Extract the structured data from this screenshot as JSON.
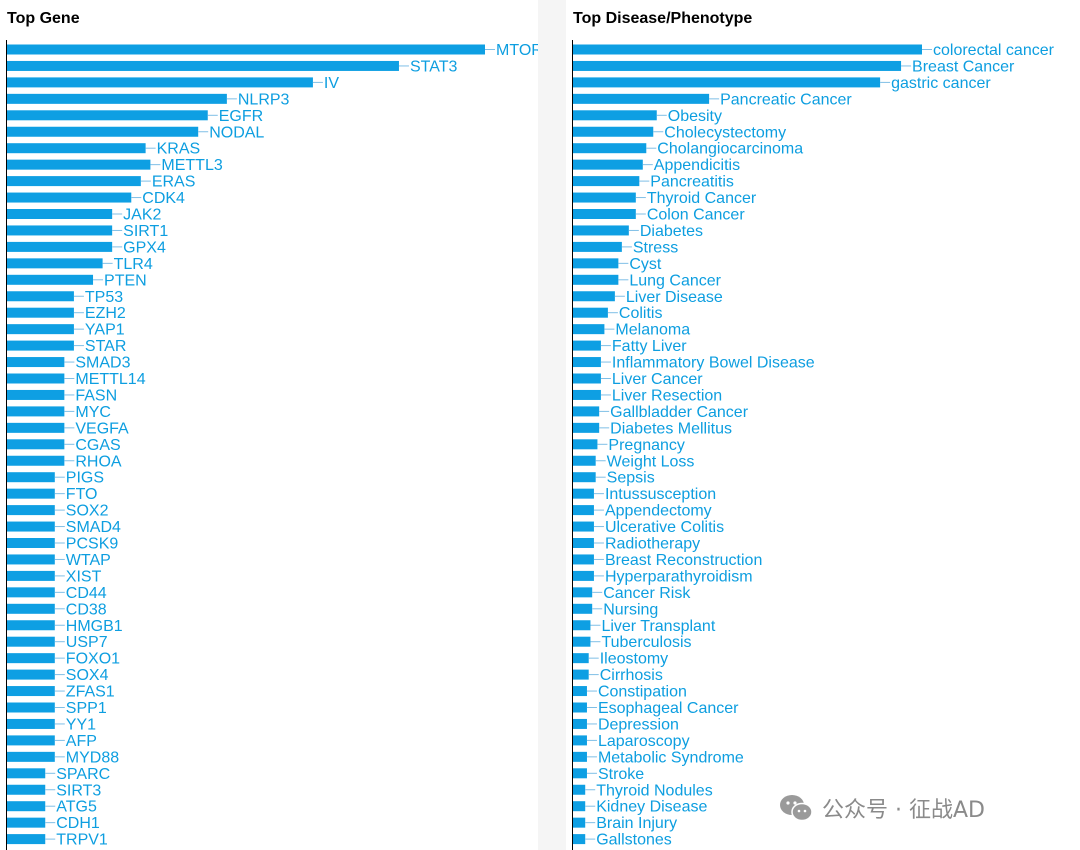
{
  "colors": {
    "bar": "#0e9fe3",
    "label": "#0d9ee0",
    "axis": "#000000",
    "watermark": "#8a8a8a"
  },
  "watermark": {
    "text": "公众号 · 征战AD",
    "icon": "wechat-icon"
  },
  "chart_data": [
    {
      "type": "bar",
      "orientation": "horizontal",
      "title": "Top Gene",
      "xlim": [
        0,
        100
      ],
      "categories": [
        "MTOR",
        "STAT3",
        "IV",
        "NLRP3",
        "EGFR",
        "NODAL",
        "KRAS",
        "METTL3",
        "ERAS",
        "CDK4",
        "JAK2",
        "SIRT1",
        "GPX4",
        "TLR4",
        "PTEN",
        "TP53",
        "EZH2",
        "YAP1",
        "STAR",
        "SMAD3",
        "METTL14",
        "FASN",
        "MYC",
        "VEGFA",
        "CGAS",
        "RHOA",
        "PIGS",
        "FTO",
        "SOX2",
        "SMAD4",
        "PCSK9",
        "WTAP",
        "XIST",
        "CD44",
        "CD38",
        "HMGB1",
        "USP7",
        "FOXO1",
        "SOX4",
        "ZFAS1",
        "SPP1",
        "YY1",
        "AFP",
        "MYD88",
        "SPARC",
        "SIRT3",
        "ATG5",
        "CDH1",
        "TRPV1"
      ],
      "values": [
        100,
        82,
        64,
        46,
        42,
        40,
        29,
        30,
        28,
        26,
        22,
        22,
        22,
        20,
        18,
        14,
        14,
        14,
        14,
        12,
        12,
        12,
        12,
        12,
        12,
        12,
        10,
        10,
        10,
        10,
        10,
        10,
        10,
        10,
        10,
        10,
        10,
        10,
        10,
        10,
        10,
        10,
        10,
        10,
        8,
        8,
        8,
        8,
        8
      ]
    },
    {
      "type": "bar",
      "orientation": "horizontal",
      "title": "Top Disease/Phenotype",
      "xlim": [
        0,
        100
      ],
      "categories": [
        "colorectal cancer",
        "Breast Cancer",
        "gastric cancer",
        "Pancreatic Cancer",
        "Obesity",
        "Cholecystectomy",
        "Cholangiocarcinoma",
        "Appendicitis",
        "Pancreatitis",
        "Thyroid Cancer",
        "Colon Cancer",
        "Diabetes",
        "Stress",
        "Cyst",
        "Lung Cancer",
        "Liver Disease",
        "Colitis",
        "Melanoma",
        "Fatty Liver",
        "Inflammatory Bowel Disease",
        "Liver Cancer",
        "Liver Resection",
        "Gallbladder Cancer",
        "Diabetes Mellitus",
        "Pregnancy",
        "Weight Loss",
        "Sepsis",
        "Intussusception",
        "Appendectomy",
        "Ulcerative Colitis",
        "Radiotherapy",
        "Breast Reconstruction",
        "Hyperparathyroidism",
        "Cancer Risk",
        "Nursing",
        "Liver Transplant",
        "Tuberculosis",
        "Ileostomy",
        "Cirrhosis",
        "Constipation",
        "Esophageal Cancer",
        "Depression",
        "Laparoscopy",
        "Metabolic Syndrome",
        "Stroke",
        "Thyroid Nodules",
        "Kidney Disease",
        "Brain Injury",
        "Gallstones"
      ],
      "values": [
        100,
        94,
        88,
        39,
        24,
        23,
        21,
        20,
        19,
        18,
        18,
        16,
        14,
        13,
        13,
        12,
        10,
        9,
        8,
        8,
        8,
        8,
        7.5,
        7.5,
        7,
        6.5,
        6.5,
        6,
        6,
        6,
        6,
        6,
        6,
        5.5,
        5.5,
        5,
        5,
        4.5,
        4.5,
        4,
        4,
        4,
        4,
        4,
        4,
        3.5,
        3.5,
        3.5,
        3.5
      ]
    }
  ]
}
